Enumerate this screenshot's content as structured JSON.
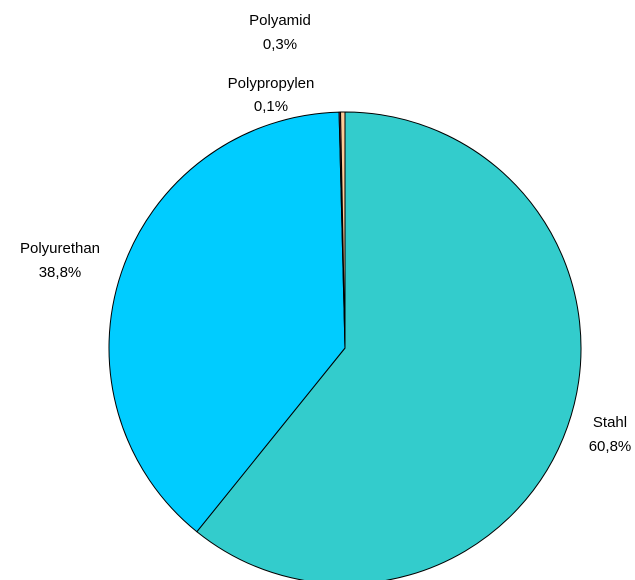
{
  "chart_data": {
    "type": "pie",
    "slices": [
      {
        "label": "Stahl",
        "value": 60.8,
        "display": "60,8%",
        "color": "#33CCCC"
      },
      {
        "label": "Polyurethan",
        "value": 38.8,
        "display": "38,8%",
        "color": "#00CCFF"
      },
      {
        "label": "Polypropylen",
        "value": 0.1,
        "display": "0,1%",
        "color": "#993366"
      },
      {
        "label": "Polyamid",
        "value": 0.3,
        "display": "0,3%",
        "color": "#FFCC99"
      }
    ],
    "start": "top",
    "direction": "clockwise",
    "legend": "none"
  }
}
